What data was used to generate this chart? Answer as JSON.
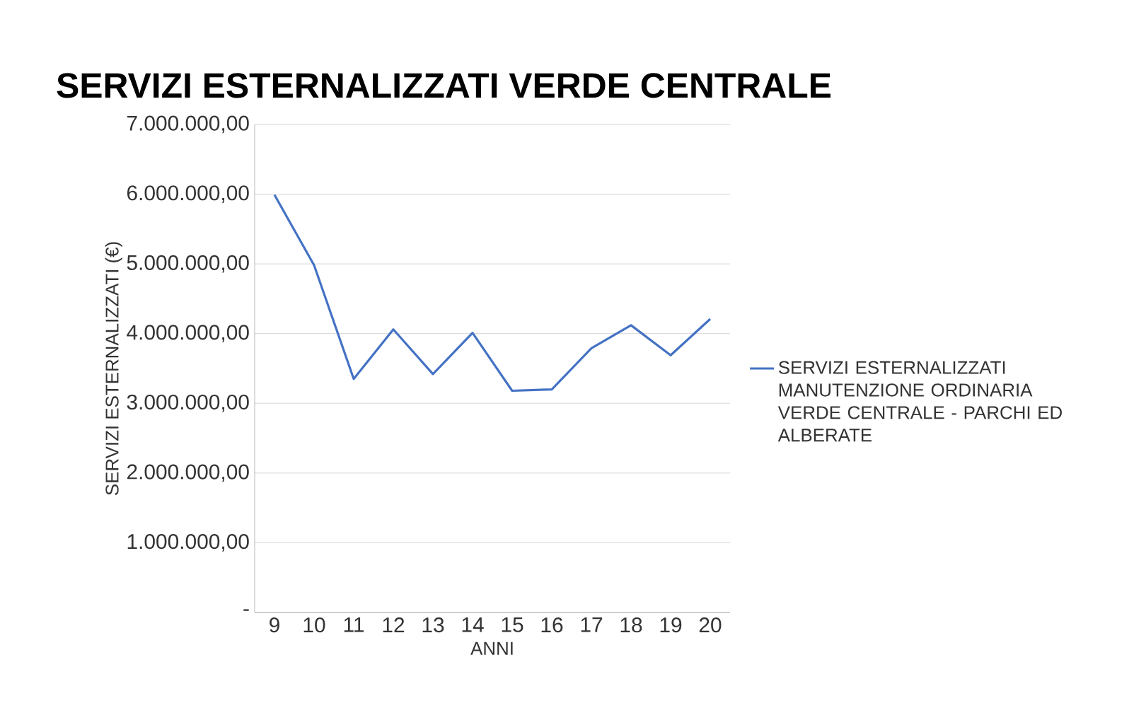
{
  "chart_data": {
    "type": "line",
    "title": "SERVIZI ESTERNALIZZATI VERDE CENTRALE",
    "xlabel": "ANNI",
    "ylabel": "SERVIZI ESTERNALIZZATI (€)",
    "categories": [
      "9",
      "10",
      "11",
      "12",
      "13",
      "14",
      "15",
      "16",
      "17",
      "18",
      "19",
      "20"
    ],
    "series": [
      {
        "name": "SERVIZI ESTERNALIZZATI MANUTENZIONE ORDINARIA VERDE CENTRALE - PARCHI ED ALBERATE",
        "color": "#4472c4",
        "values": [
          5990000,
          4980000,
          3350000,
          4060000,
          3420000,
          4010000,
          3180000,
          3200000,
          3790000,
          4120000,
          3690000,
          4210000
        ]
      }
    ],
    "ylim": [
      0,
      7000000
    ],
    "yticks": [
      {
        "value": 0,
        "label": "-"
      },
      {
        "value": 1000000,
        "label": "1.000.000,00"
      },
      {
        "value": 2000000,
        "label": "2.000.000,00"
      },
      {
        "value": 3000000,
        "label": "3.000.000,00"
      },
      {
        "value": 4000000,
        "label": "4.000.000,00"
      },
      {
        "value": 5000000,
        "label": "5.000.000,00"
      },
      {
        "value": 6000000,
        "label": "6.000.000,00"
      },
      {
        "value": 7000000,
        "label": "7.000.000,00"
      }
    ],
    "grid": "y",
    "legend": "right",
    "marker": "none",
    "line_style": "solid"
  }
}
